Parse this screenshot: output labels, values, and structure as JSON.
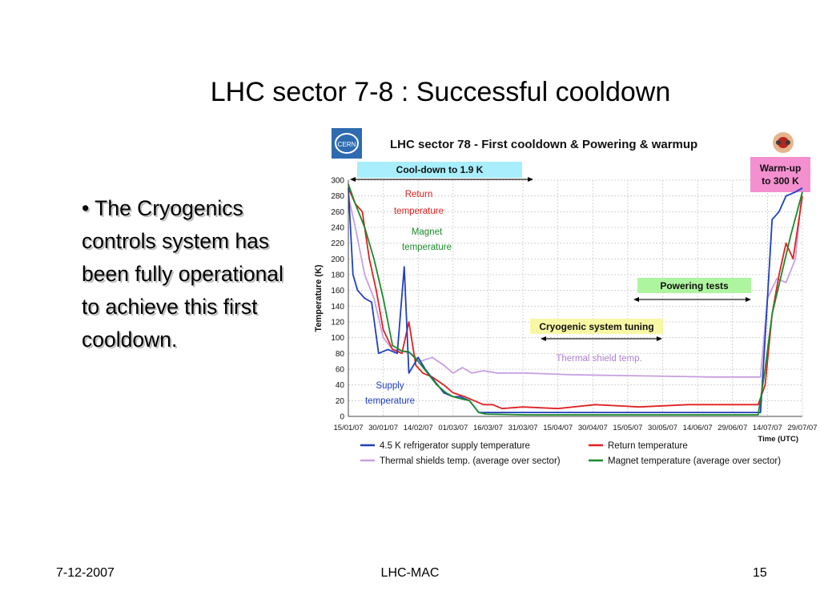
{
  "slide": {
    "title": "LHC sector 7-8 : Successful cooldown",
    "bullet": "• The Cryogenics controls system has been fully operational to achieve this first cooldown."
  },
  "footer": {
    "date": "7-12-2007",
    "center": "LHC-MAC",
    "page": "15"
  },
  "logos": {
    "left": "CERN"
  },
  "chart_data": {
    "type": "line",
    "title": "LHC sector 78 - First cooldown & Powering & warmup",
    "ylabel": "Temperature (K)",
    "xlabel": "Time (UTC)",
    "ylim": [
      0,
      300
    ],
    "yticks": [
      0,
      20,
      40,
      60,
      80,
      100,
      120,
      140,
      160,
      180,
      200,
      220,
      240,
      260,
      280,
      300
    ],
    "xlim": [
      "2007-01-15",
      "2007-07-29"
    ],
    "xticks": [
      "15/01/07",
      "30/01/07",
      "14/02/07",
      "01/03/07",
      "16/03/07",
      "31/03/07",
      "15/04/07",
      "30/04/07",
      "15/05/07",
      "30/05/07",
      "14/06/07",
      "29/06/07",
      "14/07/07",
      "29/07/07"
    ],
    "grid": true,
    "legend_position": "bottom",
    "colors": {
      "supply": "#1f3fbf",
      "return": "#e02020",
      "shields": "#c89ee0",
      "magnet": "#1a8a2a",
      "cooldown_box": "#a8eefc",
      "powering_box": "#aef5a0",
      "tuning_box": "#f8f7a4",
      "warmup_box": "#f48fd0"
    },
    "annotations": {
      "cooldown": "Cool-down to 1.9 K",
      "warmup_line1": "Warm-up",
      "warmup_line2": "to 300 K",
      "powering": "Powering tests",
      "tuning": "Cryogenic system tuning",
      "return_line1": "Return",
      "return_line2": "temperature",
      "magnet_line1": "Magnet",
      "magnet_line2": "temperature",
      "shield": "Thermal shield temp.",
      "supply_line1": "Supply",
      "supply_line2": "temperature"
    },
    "series": [
      {
        "name": "4.5 K refrigerator supply temperature",
        "color": "#1f3fbf",
        "x": [
          "2007-01-15",
          "2007-01-17",
          "2007-01-19",
          "2007-01-22",
          "2007-01-25",
          "2007-01-28",
          "2007-02-01",
          "2007-02-05",
          "2007-02-08",
          "2007-02-10",
          "2007-02-14",
          "2007-02-17",
          "2007-02-21",
          "2007-02-25",
          "2007-03-01",
          "2007-03-04",
          "2007-03-08",
          "2007-03-12",
          "2007-03-20",
          "2007-04-01",
          "2007-04-20",
          "2007-05-10",
          "2007-06-01",
          "2007-06-20",
          "2007-07-05",
          "2007-07-11",
          "2007-07-13",
          "2007-07-16",
          "2007-07-19",
          "2007-07-22",
          "2007-07-26",
          "2007-07-29"
        ],
        "y": [
          290,
          180,
          160,
          150,
          145,
          80,
          85,
          80,
          190,
          55,
          75,
          60,
          45,
          30,
          25,
          25,
          20,
          5,
          5,
          5,
          5,
          5,
          5,
          5,
          5,
          5,
          100,
          250,
          260,
          280,
          285,
          290
        ]
      },
      {
        "name": "Return temperature",
        "color": "#e02020",
        "x": [
          "2007-01-15",
          "2007-01-18",
          "2007-01-21",
          "2007-01-24",
          "2007-01-27",
          "2007-01-30",
          "2007-02-03",
          "2007-02-07",
          "2007-02-10",
          "2007-02-13",
          "2007-02-16",
          "2007-02-20",
          "2007-02-25",
          "2007-03-01",
          "2007-03-06",
          "2007-03-10",
          "2007-03-14",
          "2007-03-18",
          "2007-03-22",
          "2007-03-31",
          "2007-04-15",
          "2007-05-01",
          "2007-05-20",
          "2007-06-10",
          "2007-06-30",
          "2007-07-10",
          "2007-07-13",
          "2007-07-16",
          "2007-07-19",
          "2007-07-22",
          "2007-07-25",
          "2007-07-29"
        ],
        "y": [
          290,
          270,
          260,
          200,
          160,
          110,
          85,
          80,
          120,
          65,
          55,
          50,
          40,
          30,
          25,
          20,
          15,
          15,
          10,
          12,
          10,
          15,
          12,
          15,
          15,
          15,
          40,
          130,
          180,
          220,
          200,
          280
        ]
      },
      {
        "name": "Thermal shields temp. (average over sector)",
        "color": "#c89ee0",
        "x": [
          "2007-01-15",
          "2007-01-18",
          "2007-01-22",
          "2007-01-26",
          "2007-01-30",
          "2007-02-03",
          "2007-02-07",
          "2007-02-11",
          "2007-02-15",
          "2007-02-20",
          "2007-02-25",
          "2007-03-01",
          "2007-03-05",
          "2007-03-09",
          "2007-03-14",
          "2007-03-20",
          "2007-04-01",
          "2007-04-20",
          "2007-05-10",
          "2007-06-01",
          "2007-06-20",
          "2007-07-05",
          "2007-07-11",
          "2007-07-14",
          "2007-07-18",
          "2007-07-22",
          "2007-07-26",
          "2007-07-29"
        ],
        "y": [
          280,
          240,
          180,
          150,
          100,
          85,
          83,
          80,
          70,
          75,
          65,
          55,
          62,
          55,
          58,
          55,
          55,
          53,
          52,
          51,
          50,
          50,
          50,
          150,
          175,
          170,
          200,
          290
        ]
      },
      {
        "name": "Magnet temperature (average over sector)",
        "color": "#1a8a2a",
        "x": [
          "2007-01-15",
          "2007-01-18",
          "2007-01-22",
          "2007-01-26",
          "2007-01-30",
          "2007-02-03",
          "2007-02-07",
          "2007-02-10",
          "2007-02-14",
          "2007-02-18",
          "2007-02-22",
          "2007-02-26",
          "2007-03-01",
          "2007-03-05",
          "2007-03-08",
          "2007-03-12",
          "2007-03-15",
          "2007-04-01",
          "2007-05-01",
          "2007-06-01",
          "2007-07-01",
          "2007-07-10",
          "2007-07-13",
          "2007-07-16",
          "2007-07-20",
          "2007-07-24",
          "2007-07-29"
        ],
        "y": [
          295,
          270,
          240,
          200,
          150,
          90,
          83,
          82,
          70,
          55,
          40,
          30,
          25,
          22,
          20,
          5,
          3,
          2,
          2,
          2,
          2,
          2,
          60,
          130,
          180,
          230,
          285
        ]
      }
    ]
  }
}
